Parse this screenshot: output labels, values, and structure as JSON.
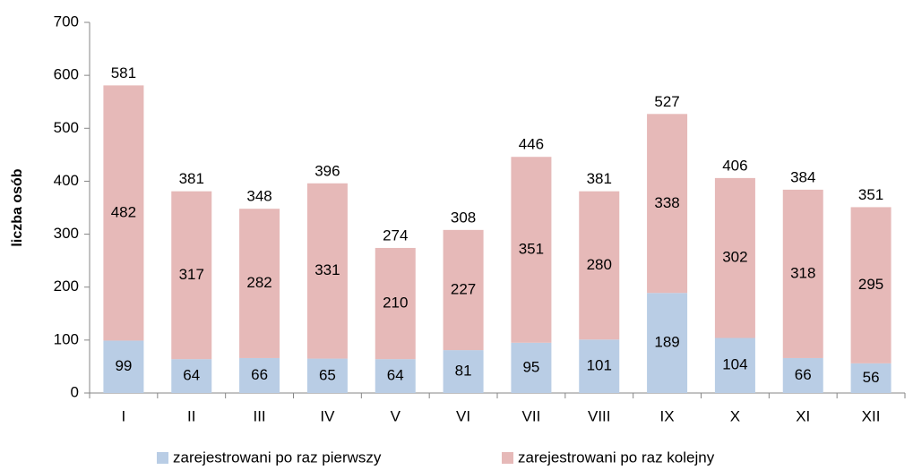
{
  "chart_data": {
    "type": "stacked_bar",
    "y_label": "liczba osób",
    "categories": [
      "I",
      "II",
      "III",
      "IV",
      "V",
      "VI",
      "VII",
      "VIII",
      "IX",
      "X",
      "XI",
      "XII"
    ],
    "series": [
      {
        "name": "zarejestrowani po raz pierwszy",
        "color": "#b9cde5",
        "values": [
          99,
          64,
          66,
          65,
          64,
          81,
          95,
          101,
          189,
          104,
          66,
          56
        ]
      },
      {
        "name": "zarejestrowani po raz kolejny",
        "color": "#e6b9b8",
        "values": [
          482,
          317,
          282,
          331,
          210,
          227,
          351,
          280,
          338,
          302,
          318,
          295
        ]
      }
    ],
    "totals": [
      581,
      381,
      348,
      396,
      274,
      308,
      446,
      381,
      527,
      406,
      384,
      351
    ],
    "ylim": [
      0,
      700
    ],
    "yticks": [
      0,
      100,
      200,
      300,
      400,
      500,
      600,
      700
    ],
    "legend": "bottom"
  }
}
